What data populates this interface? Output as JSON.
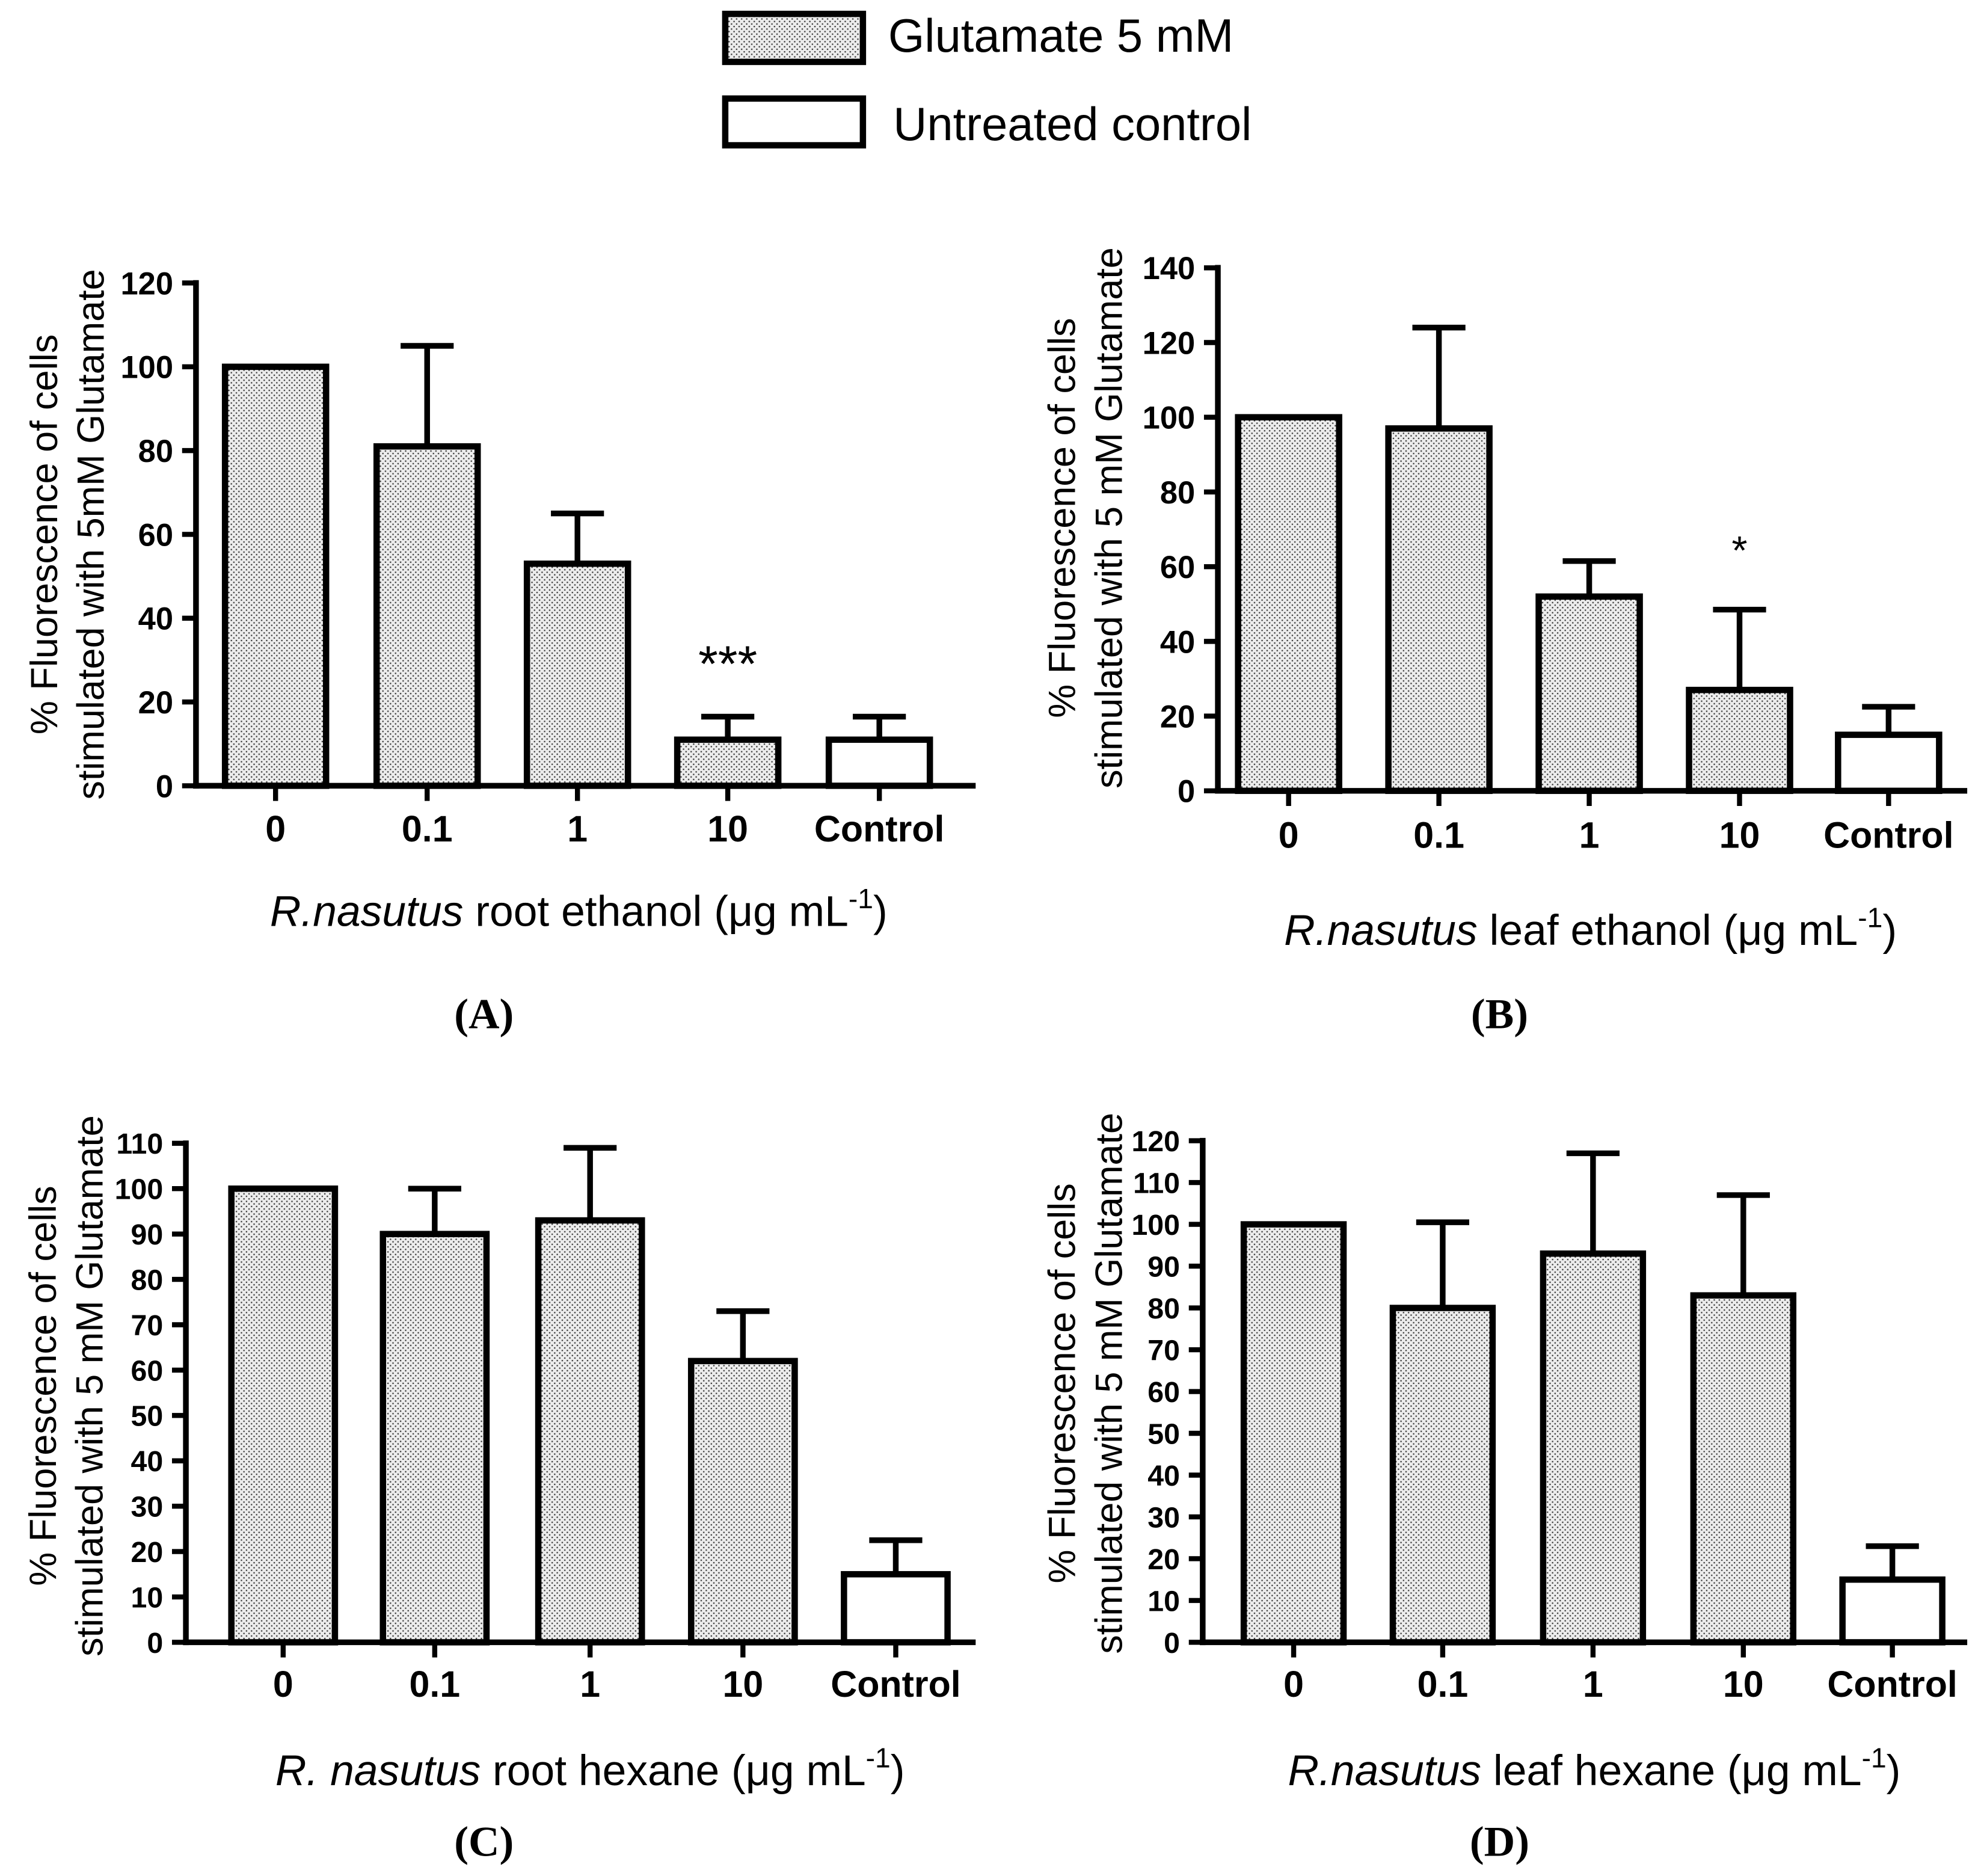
{
  "legend": [
    {
      "label": "Glutamate 5 mM",
      "dotted": true
    },
    {
      "label": "Untreated control",
      "dotted": false
    }
  ],
  "chart_data": [
    {
      "type": "bar",
      "panel_label": "(A)",
      "categories": [
        "0",
        "0.1",
        "1",
        "10",
        "Control"
      ],
      "values": [
        100,
        81,
        53,
        11,
        11
      ],
      "errors": [
        0,
        24,
        12,
        5.5,
        5.5
      ],
      "series_index": [
        0,
        0,
        0,
        0,
        1
      ],
      "ylim": [
        0,
        120
      ],
      "yticks": [
        0,
        20,
        40,
        60,
        80,
        100,
        120
      ],
      "ylabel": [
        "% Fluorescence of cells",
        "stimulated with 5mM Glutamate"
      ],
      "xlabel": {
        "italic": "R.nasutus",
        "rest": " root ethanol (μg mL",
        "sup": "-1",
        "end": ")"
      },
      "annotations": [
        {
          "category_index": 3,
          "text": "***"
        }
      ]
    },
    {
      "type": "bar",
      "panel_label": "(B)",
      "categories": [
        "0",
        "0.1",
        "1",
        "10",
        "Control"
      ],
      "values": [
        100,
        97,
        52,
        27,
        15
      ],
      "errors": [
        0,
        27,
        9.5,
        21.5,
        7.5
      ],
      "series_index": [
        0,
        0,
        0,
        0,
        1
      ],
      "ylim": [
        0,
        140
      ],
      "yticks": [
        0,
        20,
        40,
        60,
        80,
        100,
        120,
        140
      ],
      "ylabel": [
        "% Fluorescence of cells",
        "stimulated with 5 mM Glutamate"
      ],
      "xlabel": {
        "italic": "R.nasutus",
        "rest": " leaf ethanol (μg mL",
        "sup": "-1",
        "end": ")"
      },
      "annotations": [
        {
          "category_index": 3,
          "text": "*"
        }
      ]
    },
    {
      "type": "bar",
      "panel_label": "(C)",
      "categories": [
        "0",
        "0.1",
        "1",
        "10",
        "Control"
      ],
      "values": [
        100,
        90,
        93,
        62,
        15
      ],
      "errors": [
        0,
        10,
        16,
        11,
        7.5
      ],
      "series_index": [
        0,
        0,
        0,
        0,
        1
      ],
      "ylim": [
        0,
        110
      ],
      "yticks": [
        0,
        10,
        20,
        30,
        40,
        50,
        60,
        70,
        80,
        90,
        100,
        110
      ],
      "ylabel": [
        "% Fluorescence of cells",
        "stimulated with 5 mM Glutamate"
      ],
      "xlabel": {
        "italic": "R. nasutus",
        "rest": " root hexane (μg mL",
        "sup": "-1",
        "end": ")"
      },
      "annotations": []
    },
    {
      "type": "bar",
      "panel_label": "(D)",
      "categories": [
        "0",
        "0.1",
        "1",
        "10",
        "Control"
      ],
      "values": [
        100,
        80,
        93,
        83,
        15
      ],
      "errors": [
        0,
        20.5,
        24,
        24,
        8
      ],
      "series_index": [
        0,
        0,
        0,
        0,
        1
      ],
      "ylim": [
        0,
        120
      ],
      "yticks": [
        0,
        10,
        20,
        30,
        40,
        50,
        60,
        70,
        80,
        90,
        100,
        110,
        120
      ],
      "ylabel": [
        "% Fluorescence of cells",
        "stimulated with 5 mM Glutamate"
      ],
      "xlabel": {
        "italic": "R.nasutus",
        "rest": " leaf hexane (μg mL",
        "sup": "-1",
        "end": ")"
      },
      "annotations": []
    }
  ]
}
